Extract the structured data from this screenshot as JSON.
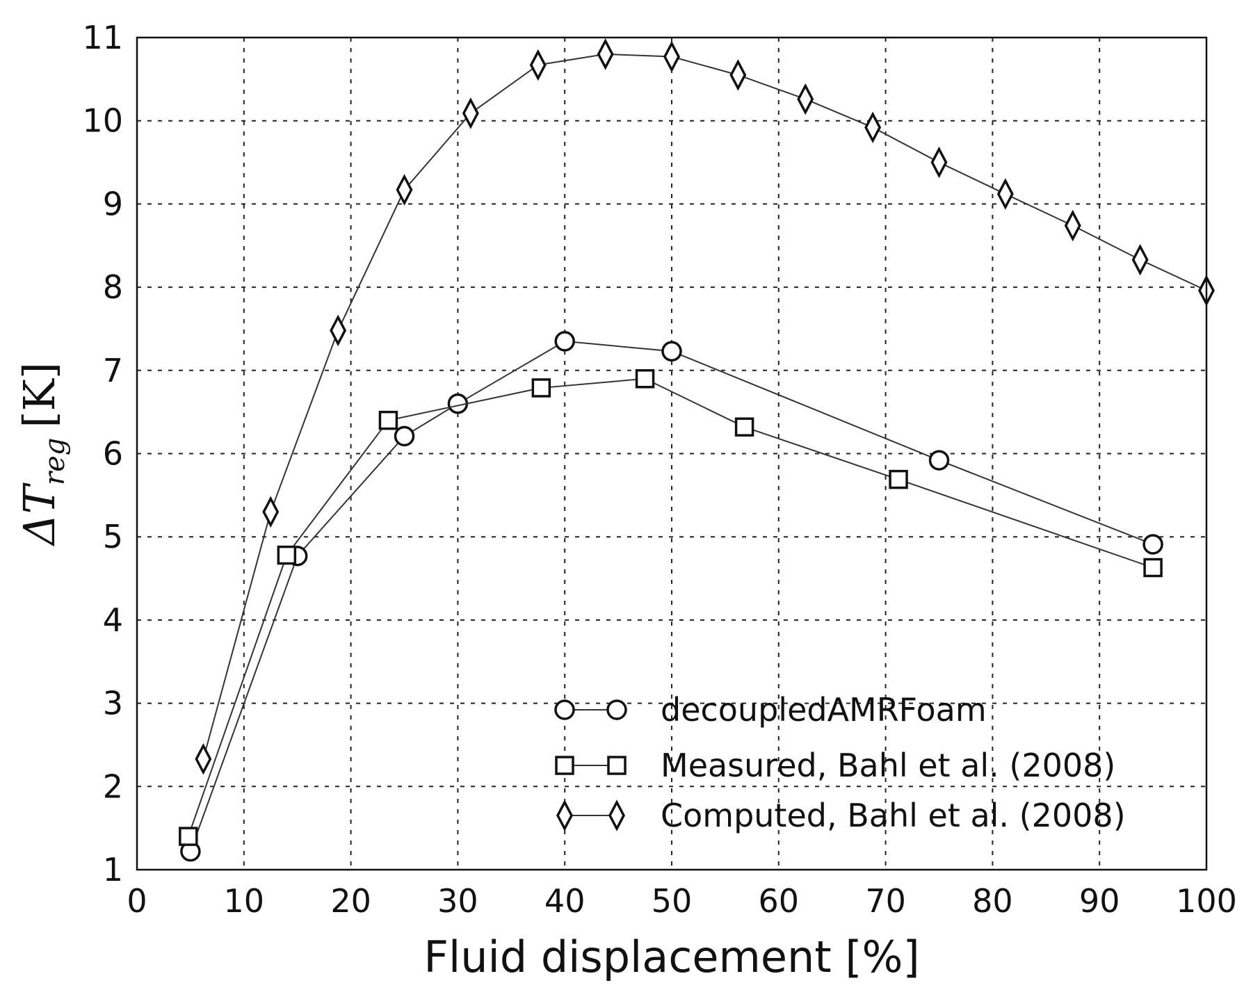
{
  "chart_data": {
    "type": "line",
    "xlabel": "Fluid displacement [%]",
    "ylabel_base": "ΔT",
    "ylabel_sub": "reg",
    "ylabel_unit": "[K]",
    "xlim": [
      0,
      100
    ],
    "ylim": [
      1,
      11
    ],
    "xticks": [
      "0",
      "10",
      "20",
      "30",
      "40",
      "50",
      "60",
      "70",
      "80",
      "90",
      "100"
    ],
    "yticks": [
      "1",
      "2",
      "3",
      "4",
      "5",
      "6",
      "7",
      "8",
      "9",
      "10",
      "11"
    ],
    "grid": true,
    "legend_position": "bottom-right",
    "series": [
      {
        "name": "decoupledAMRFoam",
        "marker": "circle",
        "x": [
          5,
          15,
          25,
          30,
          40,
          50,
          75,
          95
        ],
        "y": [
          1.22,
          4.77,
          6.21,
          6.6,
          7.35,
          7.23,
          5.92,
          4.91
        ]
      },
      {
        "name": "Measured, Bahl et al. (2008)",
        "marker": "square",
        "x": [
          4.8,
          14,
          23.5,
          37.8,
          47.5,
          56.8,
          71.2,
          95
        ],
        "y": [
          1.4,
          4.78,
          6.4,
          6.79,
          6.9,
          6.32,
          5.69,
          4.63
        ]
      },
      {
        "name": "Computed, Bahl et al. (2008)",
        "marker": "diamond",
        "x": [
          6.2,
          12.5,
          18.8,
          25,
          31.2,
          37.5,
          43.8,
          50,
          56.2,
          62.5,
          68.8,
          75,
          81.2,
          87.5,
          93.8,
          100
        ],
        "y": [
          2.33,
          5.3,
          7.48,
          9.17,
          10.09,
          10.67,
          10.8,
          10.77,
          10.55,
          10.26,
          9.92,
          9.5,
          9.12,
          8.74,
          8.33,
          7.96
        ]
      }
    ]
  }
}
